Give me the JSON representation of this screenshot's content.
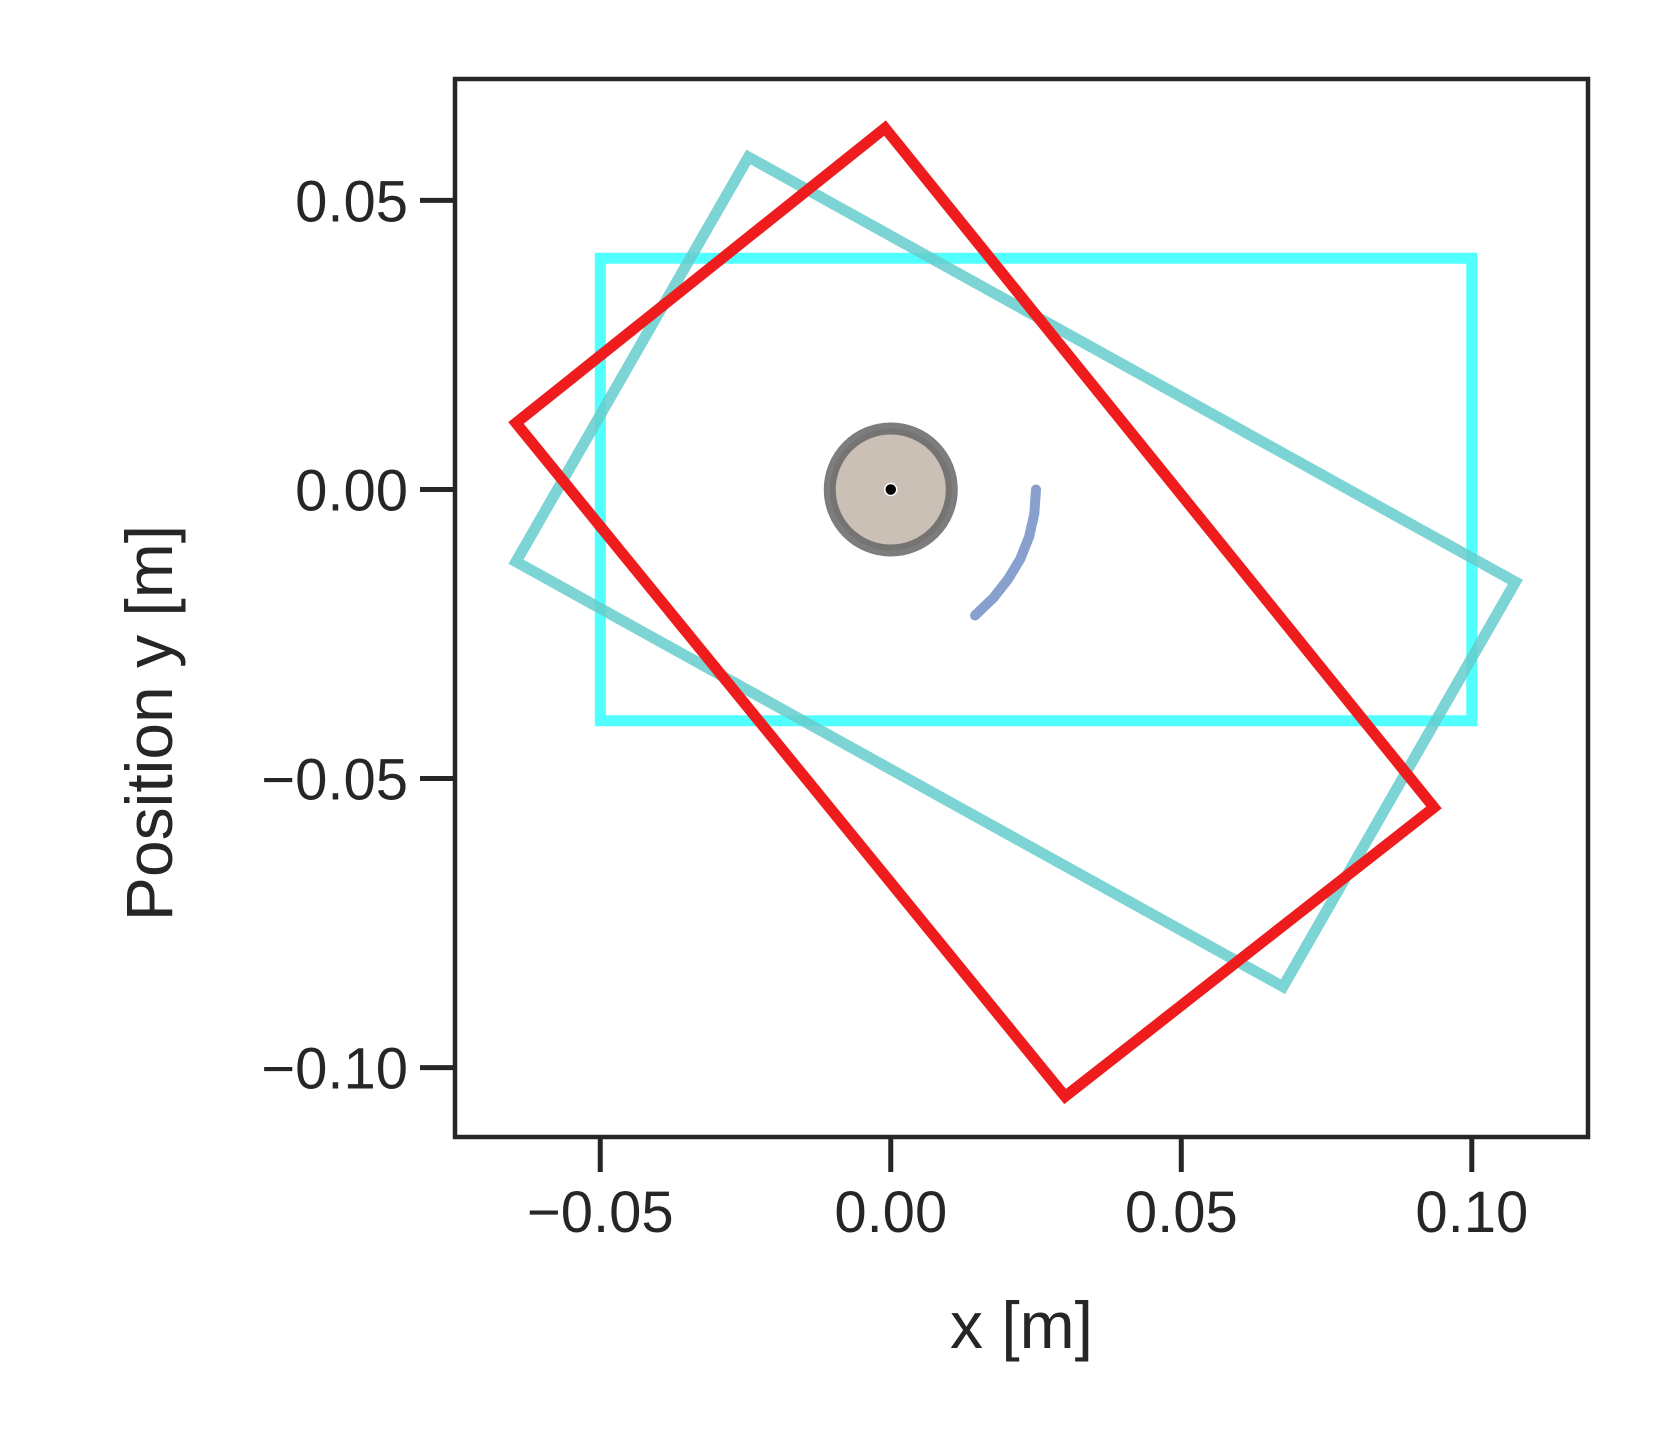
{
  "chart_data": {
    "type": "line",
    "title": "",
    "xlabel": "x [m]",
    "ylabel": "Position y [m]",
    "xlim": [
      -0.075,
      0.12
    ],
    "ylim": [
      -0.112,
      0.071
    ],
    "grid": false,
    "x_ticks": [
      {
        "value": -0.05,
        "label": "−0.05"
      },
      {
        "value": 0.0,
        "label": "0.00"
      },
      {
        "value": 0.05,
        "label": "0.05"
      },
      {
        "value": 0.1,
        "label": "0.10"
      }
    ],
    "y_ticks": [
      {
        "value": 0.05,
        "label": "0.05"
      },
      {
        "value": 0.0,
        "label": "0.00"
      },
      {
        "value": -0.05,
        "label": "−0.05"
      },
      {
        "value": -0.1,
        "label": "−0.10"
      }
    ],
    "series": [
      {
        "kind": "polygon",
        "color": "#33ffff",
        "x": [
          -0.05,
          0.1,
          0.1,
          -0.05
        ],
        "y": [
          0.04,
          0.04,
          -0.04,
          -0.04
        ]
      },
      {
        "kind": "polygon",
        "color": "#66cccc",
        "x": [
          -0.0245,
          0.1075,
          0.0675,
          -0.0645
        ],
        "y": [
          0.0575,
          -0.016,
          -0.086,
          -0.0125
        ]
      },
      {
        "kind": "polygon",
        "color": "#ee1c1c",
        "x": [
          -0.001,
          0.0935,
          0.03,
          -0.0645
        ],
        "y": [
          0.0625,
          -0.055,
          -0.105,
          0.0115
        ]
      },
      {
        "kind": "path",
        "color": "#7b96c8",
        "x": [
          0.025,
          0.0247,
          0.0238,
          0.0223,
          0.0202,
          0.0177,
          0.0145
        ],
        "y": [
          0.0,
          -0.0042,
          -0.0082,
          -0.012,
          -0.0155,
          -0.0187,
          -0.0218
        ]
      }
    ],
    "marker": {
      "x": 0.0,
      "y": 0.0,
      "radius": 0.0105,
      "fill": "#cbc0b6",
      "edge": "#666666",
      "center": "#000000"
    }
  }
}
